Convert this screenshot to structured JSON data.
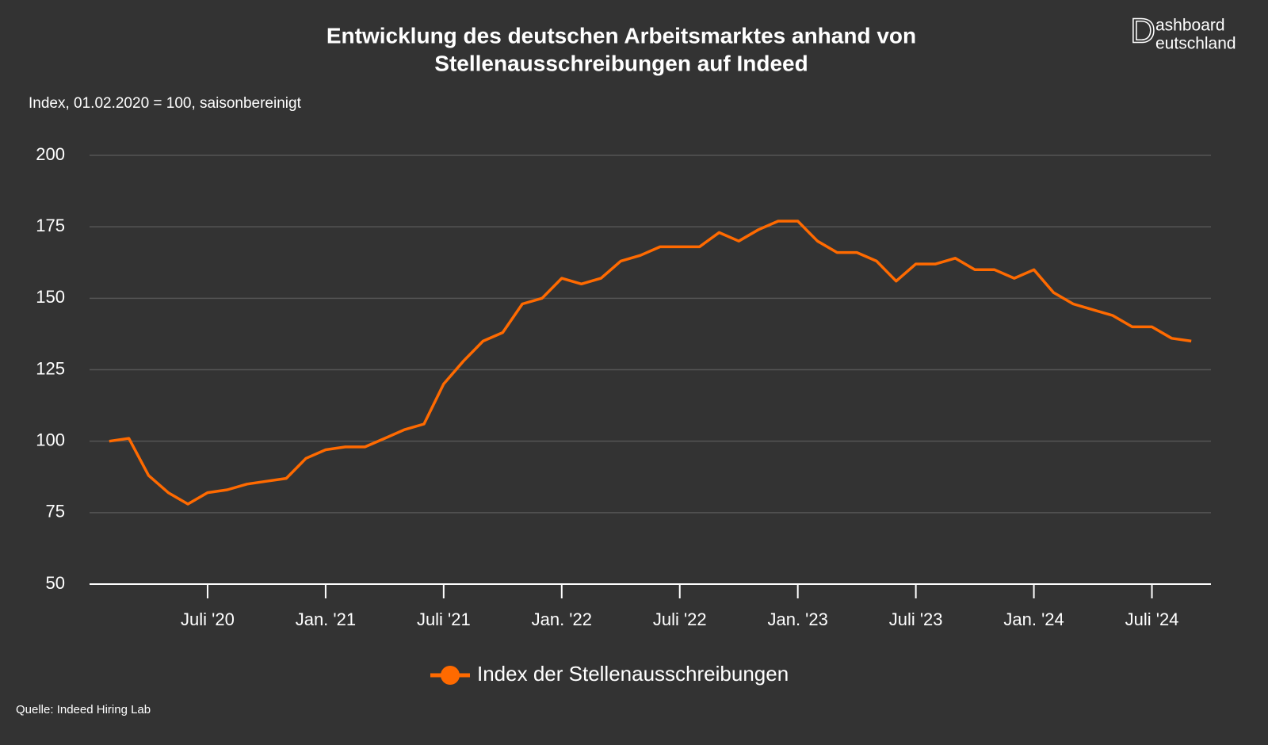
{
  "chart_data": {
    "type": "line",
    "title": "Entwicklung des deutschen Arbeitsmarktes anhand von",
    "title_line2": "Stellenausschreibungen auf Indeed",
    "subtitle": "Index, 01.02.2020 = 100, saisonbereinigt",
    "source": "Quelle: Indeed Hiring Lab",
    "logo": {
      "initial": "D",
      "line1": "ashboard",
      "line2": "eutschland"
    },
    "x": [
      "2020-02",
      "2020-03",
      "2020-04",
      "2020-05",
      "2020-06",
      "2020-07",
      "2020-08",
      "2020-09",
      "2020-10",
      "2020-11",
      "2020-12",
      "2021-01",
      "2021-02",
      "2021-03",
      "2021-04",
      "2021-05",
      "2021-06",
      "2021-07",
      "2021-08",
      "2021-09",
      "2021-10",
      "2021-11",
      "2021-12",
      "2022-01",
      "2022-02",
      "2022-03",
      "2022-04",
      "2022-05",
      "2022-06",
      "2022-07",
      "2022-08",
      "2022-09",
      "2022-10",
      "2022-11",
      "2022-12",
      "2023-01",
      "2023-02",
      "2023-03",
      "2023-04",
      "2023-05",
      "2023-06",
      "2023-07",
      "2023-08",
      "2023-09",
      "2023-10",
      "2023-11",
      "2023-12",
      "2024-01",
      "2024-02",
      "2024-03",
      "2024-04",
      "2024-05",
      "2024-06",
      "2024-07",
      "2024-08",
      "2024-09"
    ],
    "series": [
      {
        "name": "Index der Stellenausschreibungen",
        "color": "#ff6a00",
        "values": [
          100,
          101,
          88,
          82,
          78,
          82,
          83,
          85,
          86,
          87,
          94,
          97,
          98,
          98,
          101,
          104,
          106,
          120,
          128,
          135,
          138,
          148,
          150,
          157,
          155,
          157,
          163,
          165,
          168,
          168,
          168,
          173,
          170,
          174,
          177,
          177,
          170,
          166,
          166,
          163,
          156,
          162,
          162,
          164,
          160,
          160,
          157,
          160,
          152,
          148,
          146,
          144,
          140,
          140,
          136,
          135
        ]
      }
    ],
    "xlim": [
      "2020-01",
      "2024-10"
    ],
    "xticks": [
      {
        "value": "2020-07",
        "label": "Juli '20"
      },
      {
        "value": "2021-01",
        "label": "Jan. '21"
      },
      {
        "value": "2021-07",
        "label": "Juli '21"
      },
      {
        "value": "2022-01",
        "label": "Jan. '22"
      },
      {
        "value": "2022-07",
        "label": "Juli '22"
      },
      {
        "value": "2023-01",
        "label": "Jan. '23"
      },
      {
        "value": "2023-07",
        "label": "Juli '23"
      },
      {
        "value": "2024-01",
        "label": "Jan. '24"
      },
      {
        "value": "2024-07",
        "label": "Juli '24"
      }
    ],
    "ylim": [
      50,
      200
    ],
    "yticks": [
      50,
      75,
      100,
      125,
      150,
      175,
      200
    ],
    "grid": true
  }
}
